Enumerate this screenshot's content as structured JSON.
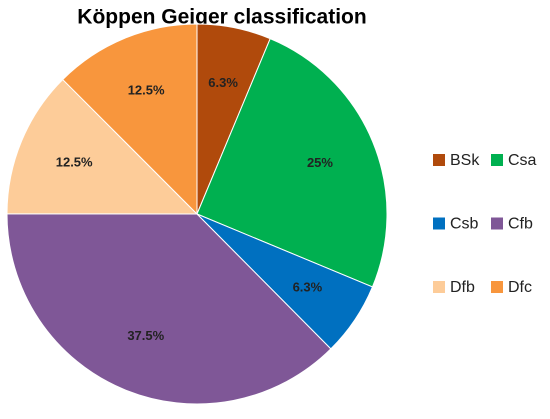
{
  "chart_data": {
    "type": "pie",
    "title": "Köppen Geiger classification",
    "categories": [
      "BSk",
      "Csa",
      "Csb",
      "Cfb",
      "Dfb",
      "Dfc"
    ],
    "values": [
      6.3,
      25,
      6.3,
      37.5,
      12.5,
      12.5
    ],
    "value_labels": [
      "6.3%",
      "25%",
      "6.3%",
      "37.5%",
      "12.5%",
      "12.5%"
    ],
    "colors": [
      "#b04a0c",
      "#00b050",
      "#0070c0",
      "#7f5797",
      "#fdcc99",
      "#f8963d"
    ],
    "legend": "right"
  }
}
